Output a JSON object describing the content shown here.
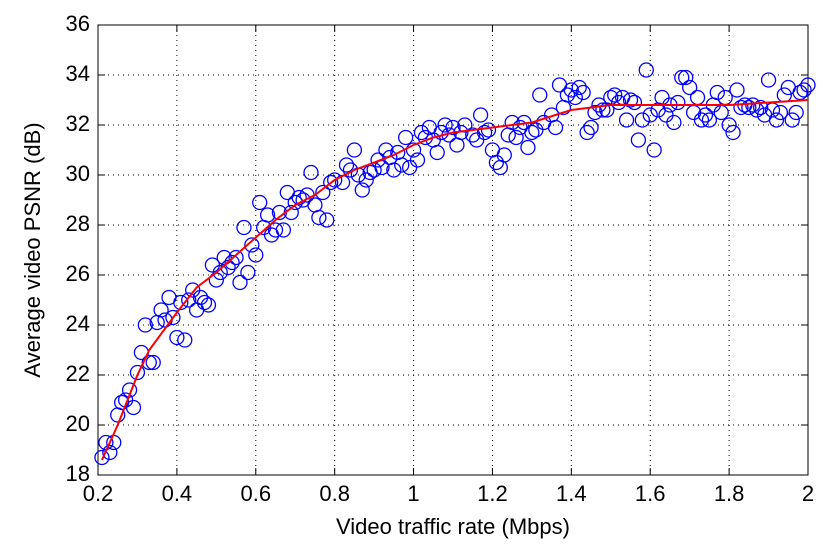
{
  "chart_data": {
    "type": "scatter",
    "x_label": "Video traffic rate (Mbps)",
    "y_label": "Average video PSNR (dB)",
    "xlim": [
      0.2,
      2
    ],
    "ylim": [
      18,
      36
    ],
    "xticks": [
      0.2,
      0.4,
      0.6,
      0.8,
      1,
      1.2,
      1.4,
      1.6,
      1.8,
      2
    ],
    "yticks": [
      18,
      20,
      22,
      24,
      26,
      28,
      30,
      32,
      34,
      36
    ],
    "grid": true,
    "series": [
      {
        "marker": "circle",
        "color": "#0000ff",
        "x": [
          0.21,
          0.22,
          0.23,
          0.24,
          0.25,
          0.26,
          0.27,
          0.28,
          0.29,
          0.3,
          0.31,
          0.32,
          0.33,
          0.34,
          0.35,
          0.36,
          0.37,
          0.38,
          0.39,
          0.4,
          0.41,
          0.42,
          0.43,
          0.44,
          0.45,
          0.46,
          0.47,
          0.48,
          0.49,
          0.5,
          0.51,
          0.52,
          0.53,
          0.54,
          0.55,
          0.56,
          0.57,
          0.58,
          0.59,
          0.6,
          0.61,
          0.62,
          0.63,
          0.64,
          0.65,
          0.66,
          0.67,
          0.68,
          0.69,
          0.7,
          0.71,
          0.72,
          0.73,
          0.74,
          0.75,
          0.76,
          0.77,
          0.78,
          0.79,
          0.8,
          0.82,
          0.83,
          0.84,
          0.85,
          0.86,
          0.87,
          0.88,
          0.89,
          0.9,
          0.91,
          0.92,
          0.93,
          0.94,
          0.95,
          0.96,
          0.97,
          0.98,
          0.99,
          1.0,
          1.01,
          1.02,
          1.03,
          1.04,
          1.05,
          1.06,
          1.07,
          1.08,
          1.09,
          1.1,
          1.11,
          1.12,
          1.13,
          1.15,
          1.16,
          1.17,
          1.18,
          1.19,
          1.2,
          1.21,
          1.22,
          1.23,
          1.24,
          1.25,
          1.26,
          1.27,
          1.28,
          1.29,
          1.3,
          1.31,
          1.32,
          1.33,
          1.35,
          1.36,
          1.37,
          1.38,
          1.39,
          1.4,
          1.41,
          1.42,
          1.43,
          1.44,
          1.45,
          1.46,
          1.47,
          1.48,
          1.49,
          1.5,
          1.51,
          1.52,
          1.53,
          1.54,
          1.55,
          1.56,
          1.57,
          1.58,
          1.59,
          1.6,
          1.61,
          1.62,
          1.63,
          1.64,
          1.65,
          1.66,
          1.67,
          1.68,
          1.69,
          1.7,
          1.71,
          1.72,
          1.73,
          1.74,
          1.75,
          1.76,
          1.77,
          1.78,
          1.79,
          1.8,
          1.81,
          1.82,
          1.83,
          1.84,
          1.85,
          1.86,
          1.87,
          1.88,
          1.89,
          1.9,
          1.91,
          1.92,
          1.93,
          1.94,
          1.95,
          1.96,
          1.97,
          1.98,
          1.99,
          2.0
        ],
        "values": [
          18.7,
          19.3,
          18.9,
          19.3,
          20.4,
          20.9,
          21.0,
          21.4,
          20.7,
          22.1,
          22.9,
          24.0,
          22.5,
          22.5,
          24.1,
          24.6,
          24.2,
          25.1,
          24.3,
          23.5,
          24.9,
          23.4,
          25.0,
          25.4,
          24.6,
          25.1,
          24.9,
          24.8,
          26.4,
          25.8,
          26.1,
          26.7,
          26.3,
          26.5,
          26.7,
          25.7,
          27.9,
          26.1,
          27.2,
          26.8,
          28.9,
          27.9,
          28.4,
          27.6,
          27.8,
          28.5,
          27.8,
          29.3,
          28.5,
          28.9,
          29.1,
          29.0,
          29.2,
          30.1,
          28.8,
          28.3,
          29.3,
          28.2,
          29.7,
          29.8,
          29.7,
          30.4,
          30.2,
          31.0,
          30.0,
          29.4,
          29.8,
          30.1,
          30.2,
          30.6,
          30.3,
          31.0,
          30.7,
          30.2,
          30.9,
          30.4,
          31.5,
          30.3,
          31.0,
          30.6,
          31.7,
          31.5,
          31.9,
          31.4,
          30.9,
          31.7,
          32.0,
          31.6,
          31.9,
          31.2,
          31.7,
          32.0,
          31.6,
          31.4,
          32.4,
          31.7,
          31.8,
          31.0,
          30.5,
          30.3,
          30.8,
          31.6,
          32.1,
          31.5,
          31.9,
          32.1,
          31.1,
          31.7,
          31.8,
          33.2,
          32.1,
          32.4,
          31.9,
          33.6,
          32.7,
          33.2,
          33.4,
          33.1,
          33.5,
          33.3,
          31.7,
          31.9,
          32.5,
          32.8,
          32.6,
          32.6,
          33.1,
          33.2,
          32.9,
          33.1,
          32.2,
          33.0,
          32.9,
          31.4,
          32.2,
          34.2,
          32.4,
          31.0,
          32.6,
          33.1,
          32.4,
          32.8,
          32.1,
          32.9,
          33.9,
          33.9,
          33.5,
          32.5,
          33.1,
          32.2,
          32.4,
          32.2,
          32.8,
          33.3,
          32.5,
          33.1,
          32.0,
          31.7,
          33.4,
          32.7,
          32.8,
          32.7,
          32.8,
          32.6,
          32.7,
          32.4,
          33.8,
          32.6,
          32.2,
          32.5,
          33.2,
          33.5,
          32.2,
          32.5,
          33.3,
          33.4,
          33.6
        ]
      },
      {
        "marker": "line",
        "color": "#ff0000",
        "x": [
          0.21,
          0.25,
          0.3,
          0.33,
          0.4,
          0.45,
          0.5,
          0.55,
          0.6,
          0.65,
          0.7,
          0.75,
          0.8,
          0.85,
          0.9,
          0.95,
          1.0,
          1.05,
          1.1,
          1.2,
          1.3,
          1.4,
          1.5,
          1.6,
          1.7,
          1.8,
          1.9,
          2.0
        ],
        "values": [
          18.6,
          20.0,
          22.0,
          23.0,
          24.5,
          25.5,
          26.1,
          26.8,
          27.5,
          28.2,
          28.8,
          29.2,
          29.8,
          30.2,
          30.5,
          30.8,
          31.2,
          31.5,
          31.7,
          31.9,
          32.1,
          32.6,
          32.8,
          32.8,
          32.8,
          32.8,
          32.9,
          33.0
        ]
      }
    ]
  }
}
